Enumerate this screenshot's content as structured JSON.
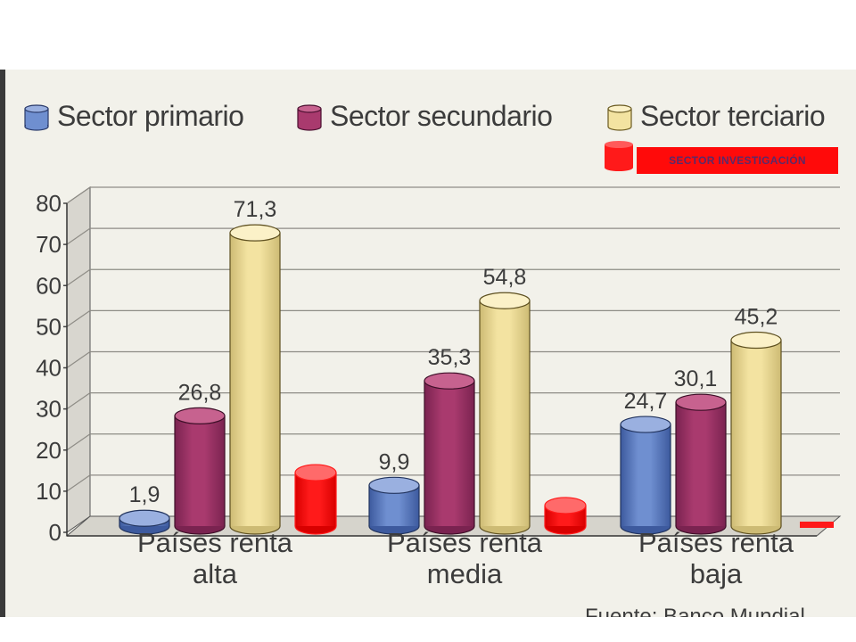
{
  "legend": {
    "primario": "Sector primario",
    "secundario": "Sector secundario",
    "terciario": "Sector terciario",
    "investigacion": "SECTOR INVESTIGACIÓN"
  },
  "source": "Fuente: Banco Mundial",
  "colors": {
    "primario": "#6f8fd0",
    "secundario": "#a93a6e",
    "terciario": "#f3e3a1",
    "investigacion": "#ff1a1a",
    "background": "#f2f1ea"
  },
  "chart_data": {
    "type": "bar",
    "categories": [
      [
        "Países renta",
        "alta"
      ],
      [
        "Países renta",
        "media"
      ],
      [
        "Países renta",
        "baja"
      ]
    ],
    "yticks": [
      "0",
      "10",
      "20",
      "30",
      "40",
      "50",
      "60",
      "70",
      "80"
    ],
    "ylim": [
      0,
      80
    ],
    "grid": true,
    "legend_position": "top",
    "series": [
      {
        "name": "Sector primario",
        "values": [
          1.9,
          9.9,
          24.7
        ],
        "labels": [
          "1,9",
          "9,9",
          "24,7"
        ],
        "color": "#6f8fd0"
      },
      {
        "name": "Sector secundario",
        "values": [
          26.8,
          35.3,
          30.1
        ],
        "labels": [
          "26,8",
          "35,3",
          "30,1"
        ],
        "color": "#a93a6e"
      },
      {
        "name": "Sector terciario",
        "values": [
          71.3,
          54.8,
          45.2
        ],
        "labels": [
          "71,3",
          "54,8",
          "45,2"
        ],
        "color": "#f3e3a1"
      },
      {
        "name": "SECTOR INVESTIGACIÓN",
        "values": [
          13,
          5,
          0.5
        ],
        "color": "#ff1a1a"
      }
    ]
  }
}
